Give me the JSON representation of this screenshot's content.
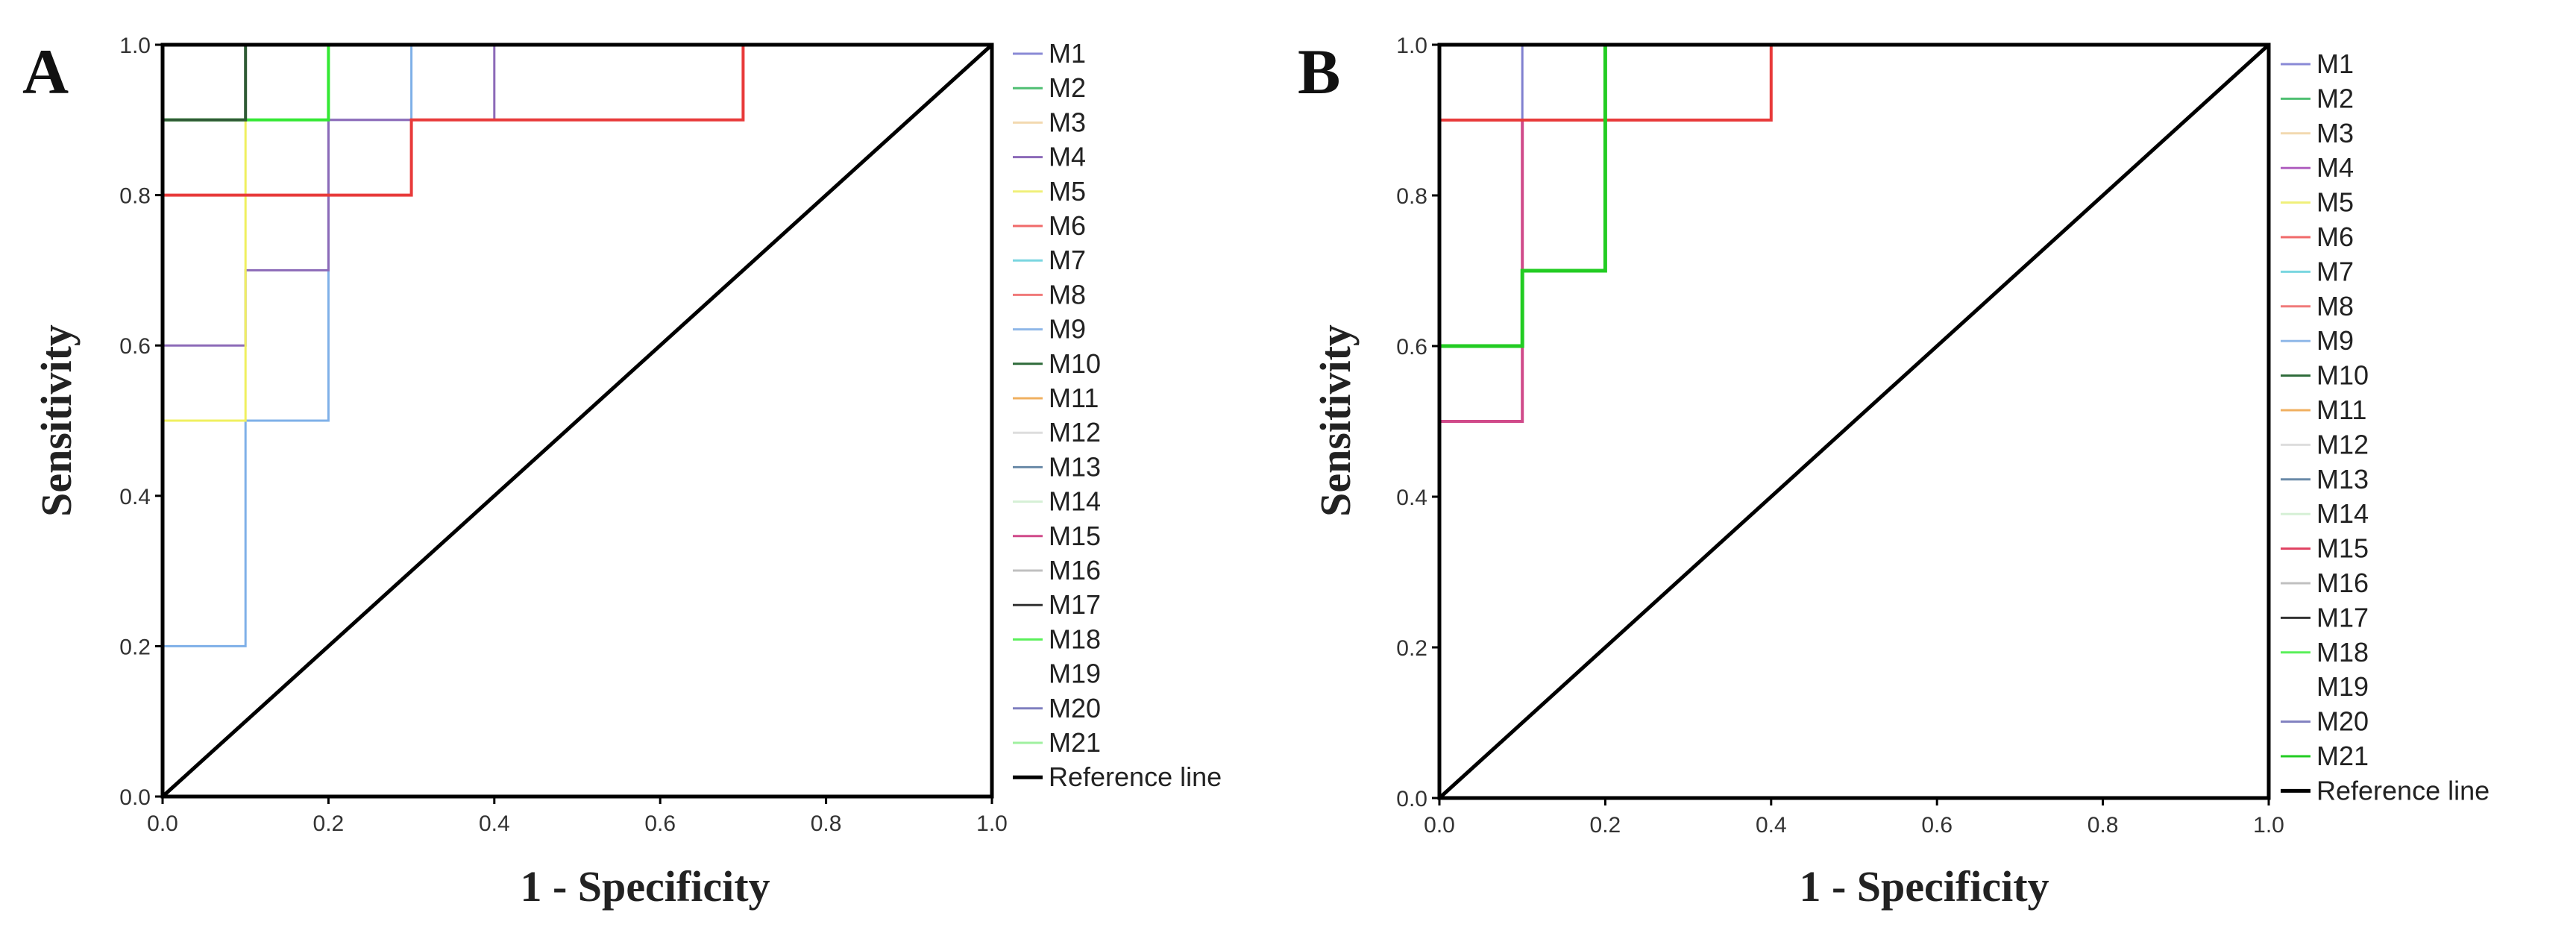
{
  "chart_data": [
    {
      "type": "line",
      "panel_label": "A",
      "xlabel": "1 - Specificity",
      "ylabel": "Sensitivity",
      "xlim": [
        0,
        1
      ],
      "ylim": [
        0,
        1
      ],
      "x_ticks": [
        "0.0",
        "0.2",
        "0.4",
        "0.6",
        "0.8",
        "1.0"
      ],
      "y_ticks": [
        "0.0",
        "0.2",
        "0.4",
        "0.6",
        "0.8",
        "1.0"
      ],
      "legend_position": "right",
      "legend": [
        {
          "name": "M1",
          "color": "#8a8ad6"
        },
        {
          "name": "M2",
          "color": "#4fbf72"
        },
        {
          "name": "M3",
          "color": "#f2d9b0"
        },
        {
          "name": "M4",
          "color": "#8c6ab8"
        },
        {
          "name": "M5",
          "color": "#f0f07a"
        },
        {
          "name": "M6",
          "color": "#f06a6a"
        },
        {
          "name": "M7",
          "color": "#7ad6e0"
        },
        {
          "name": "M8",
          "color": "#f07a7a"
        },
        {
          "name": "M9",
          "color": "#90b8e8"
        },
        {
          "name": "M10",
          "color": "#2e6b3a"
        },
        {
          "name": "M11",
          "color": "#f0b060"
        },
        {
          "name": "M12",
          "color": "#dddddd"
        },
        {
          "name": "M13",
          "color": "#6a8aa8"
        },
        {
          "name": "M14",
          "color": "#d6f0d6"
        },
        {
          "name": "M15",
          "color": "#d04a8a"
        },
        {
          "name": "M16",
          "color": "#c0c0c0"
        },
        {
          "name": "M17",
          "color": "#333333"
        },
        {
          "name": "M18",
          "color": "#5af05a"
        },
        {
          "name": "M19",
          "color": "#ffffff"
        },
        {
          "name": "M20",
          "color": "#8080c0"
        },
        {
          "name": "M21",
          "color": "#a0f0a0"
        },
        {
          "name": "Reference line",
          "color": "#000000"
        }
      ],
      "series": [
        {
          "name": "M9",
          "color": "#7fb0e8",
          "width": 3,
          "x": [
            0,
            0,
            0.1,
            0.1,
            0.2,
            0.2,
            0.3,
            0.3,
            1
          ],
          "y": [
            0,
            0.2,
            0.2,
            0.5,
            0.5,
            0.9,
            0.9,
            1,
            1
          ]
        },
        {
          "name": "M4",
          "color": "#8c6ab8",
          "width": 3,
          "x": [
            0,
            0,
            0.1,
            0.1,
            0.2,
            0.2,
            0.4,
            0.4,
            1
          ],
          "y": [
            0,
            0.6,
            0.6,
            0.7,
            0.7,
            0.9,
            0.9,
            1,
            1
          ]
        },
        {
          "name": "M5",
          "color": "#f0f060",
          "width": 3,
          "x": [
            0,
            0,
            0.1,
            0.1,
            1
          ],
          "y": [
            0,
            0.5,
            0.5,
            1,
            1
          ]
        },
        {
          "name": "M6",
          "color": "#e83a3a",
          "width": 4,
          "x": [
            0,
            0,
            0.3,
            0.3,
            0.7,
            0.7,
            1
          ],
          "y": [
            0,
            0.8,
            0.8,
            0.9,
            0.9,
            1,
            1
          ]
        },
        {
          "name": "M18",
          "color": "#33e833",
          "width": 4,
          "x": [
            0,
            0,
            0.2,
            0.2,
            1
          ],
          "y": [
            0,
            0.9,
            0.9,
            1,
            1
          ]
        },
        {
          "name": "M10",
          "color": "#2e5a34",
          "width": 4,
          "x": [
            0,
            0,
            0.1,
            0.1,
            1
          ],
          "y": [
            0,
            0.9,
            0.9,
            1,
            1
          ]
        },
        {
          "name": "Reference line",
          "color": "#000000",
          "width": 5,
          "x": [
            0,
            1
          ],
          "y": [
            0,
            1
          ]
        }
      ]
    },
    {
      "type": "line",
      "panel_label": "B",
      "xlabel": "1 - Specificity",
      "ylabel": "Sensitivity",
      "xlim": [
        0,
        1
      ],
      "ylim": [
        0,
        1
      ],
      "x_ticks": [
        "0.0",
        "0.2",
        "0.4",
        "0.6",
        "0.8",
        "1.0"
      ],
      "y_ticks": [
        "0.0",
        "0.2",
        "0.4",
        "0.6",
        "0.8",
        "1.0"
      ],
      "legend_position": "right",
      "legend": [
        {
          "name": "M1",
          "color": "#8a8ad6"
        },
        {
          "name": "M2",
          "color": "#4fbf72"
        },
        {
          "name": "M3",
          "color": "#f2d9b0"
        },
        {
          "name": "M4",
          "color": "#b060c0"
        },
        {
          "name": "M5",
          "color": "#f0f07a"
        },
        {
          "name": "M6",
          "color": "#f06a6a"
        },
        {
          "name": "M7",
          "color": "#7ad6e0"
        },
        {
          "name": "M8",
          "color": "#f07a7a"
        },
        {
          "name": "M9",
          "color": "#90b8e8"
        },
        {
          "name": "M10",
          "color": "#2e6b3a"
        },
        {
          "name": "M11",
          "color": "#f0b060"
        },
        {
          "name": "M12",
          "color": "#dddddd"
        },
        {
          "name": "M13",
          "color": "#6a8aa8"
        },
        {
          "name": "M14",
          "color": "#d6f0d6"
        },
        {
          "name": "M15",
          "color": "#e04060"
        },
        {
          "name": "M16",
          "color": "#c0c0c0"
        },
        {
          "name": "M17",
          "color": "#333333"
        },
        {
          "name": "M18",
          "color": "#5af05a"
        },
        {
          "name": "M19",
          "color": "#ffffff"
        },
        {
          "name": "M20",
          "color": "#8080c0"
        },
        {
          "name": "M21",
          "color": "#22cc22"
        },
        {
          "name": "Reference line",
          "color": "#000000"
        }
      ],
      "series": [
        {
          "name": "M1",
          "color": "#8080d0",
          "width": 3,
          "x": [
            0,
            0,
            0.1,
            0.1,
            1
          ],
          "y": [
            0,
            0.9,
            0.9,
            1,
            1
          ]
        },
        {
          "name": "M15",
          "color": "#d04a8a",
          "width": 4,
          "x": [
            0,
            0,
            0.1,
            0.1,
            0.2,
            0.2,
            1
          ],
          "y": [
            0,
            0.5,
            0.5,
            0.9,
            0.9,
            1,
            1
          ]
        },
        {
          "name": "M6",
          "color": "#e83a3a",
          "width": 4,
          "x": [
            0,
            0,
            0.4,
            0.4,
            1
          ],
          "y": [
            0,
            0.9,
            0.9,
            1,
            1
          ]
        },
        {
          "name": "M21",
          "color": "#22cc22",
          "width": 5,
          "x": [
            0,
            0,
            0.1,
            0.1,
            0.2,
            0.2,
            1
          ],
          "y": [
            0,
            0.6,
            0.6,
            0.7,
            0.7,
            1,
            1
          ]
        },
        {
          "name": "Reference line",
          "color": "#000000",
          "width": 5,
          "x": [
            0,
            1
          ],
          "y": [
            0,
            1
          ]
        }
      ]
    }
  ]
}
